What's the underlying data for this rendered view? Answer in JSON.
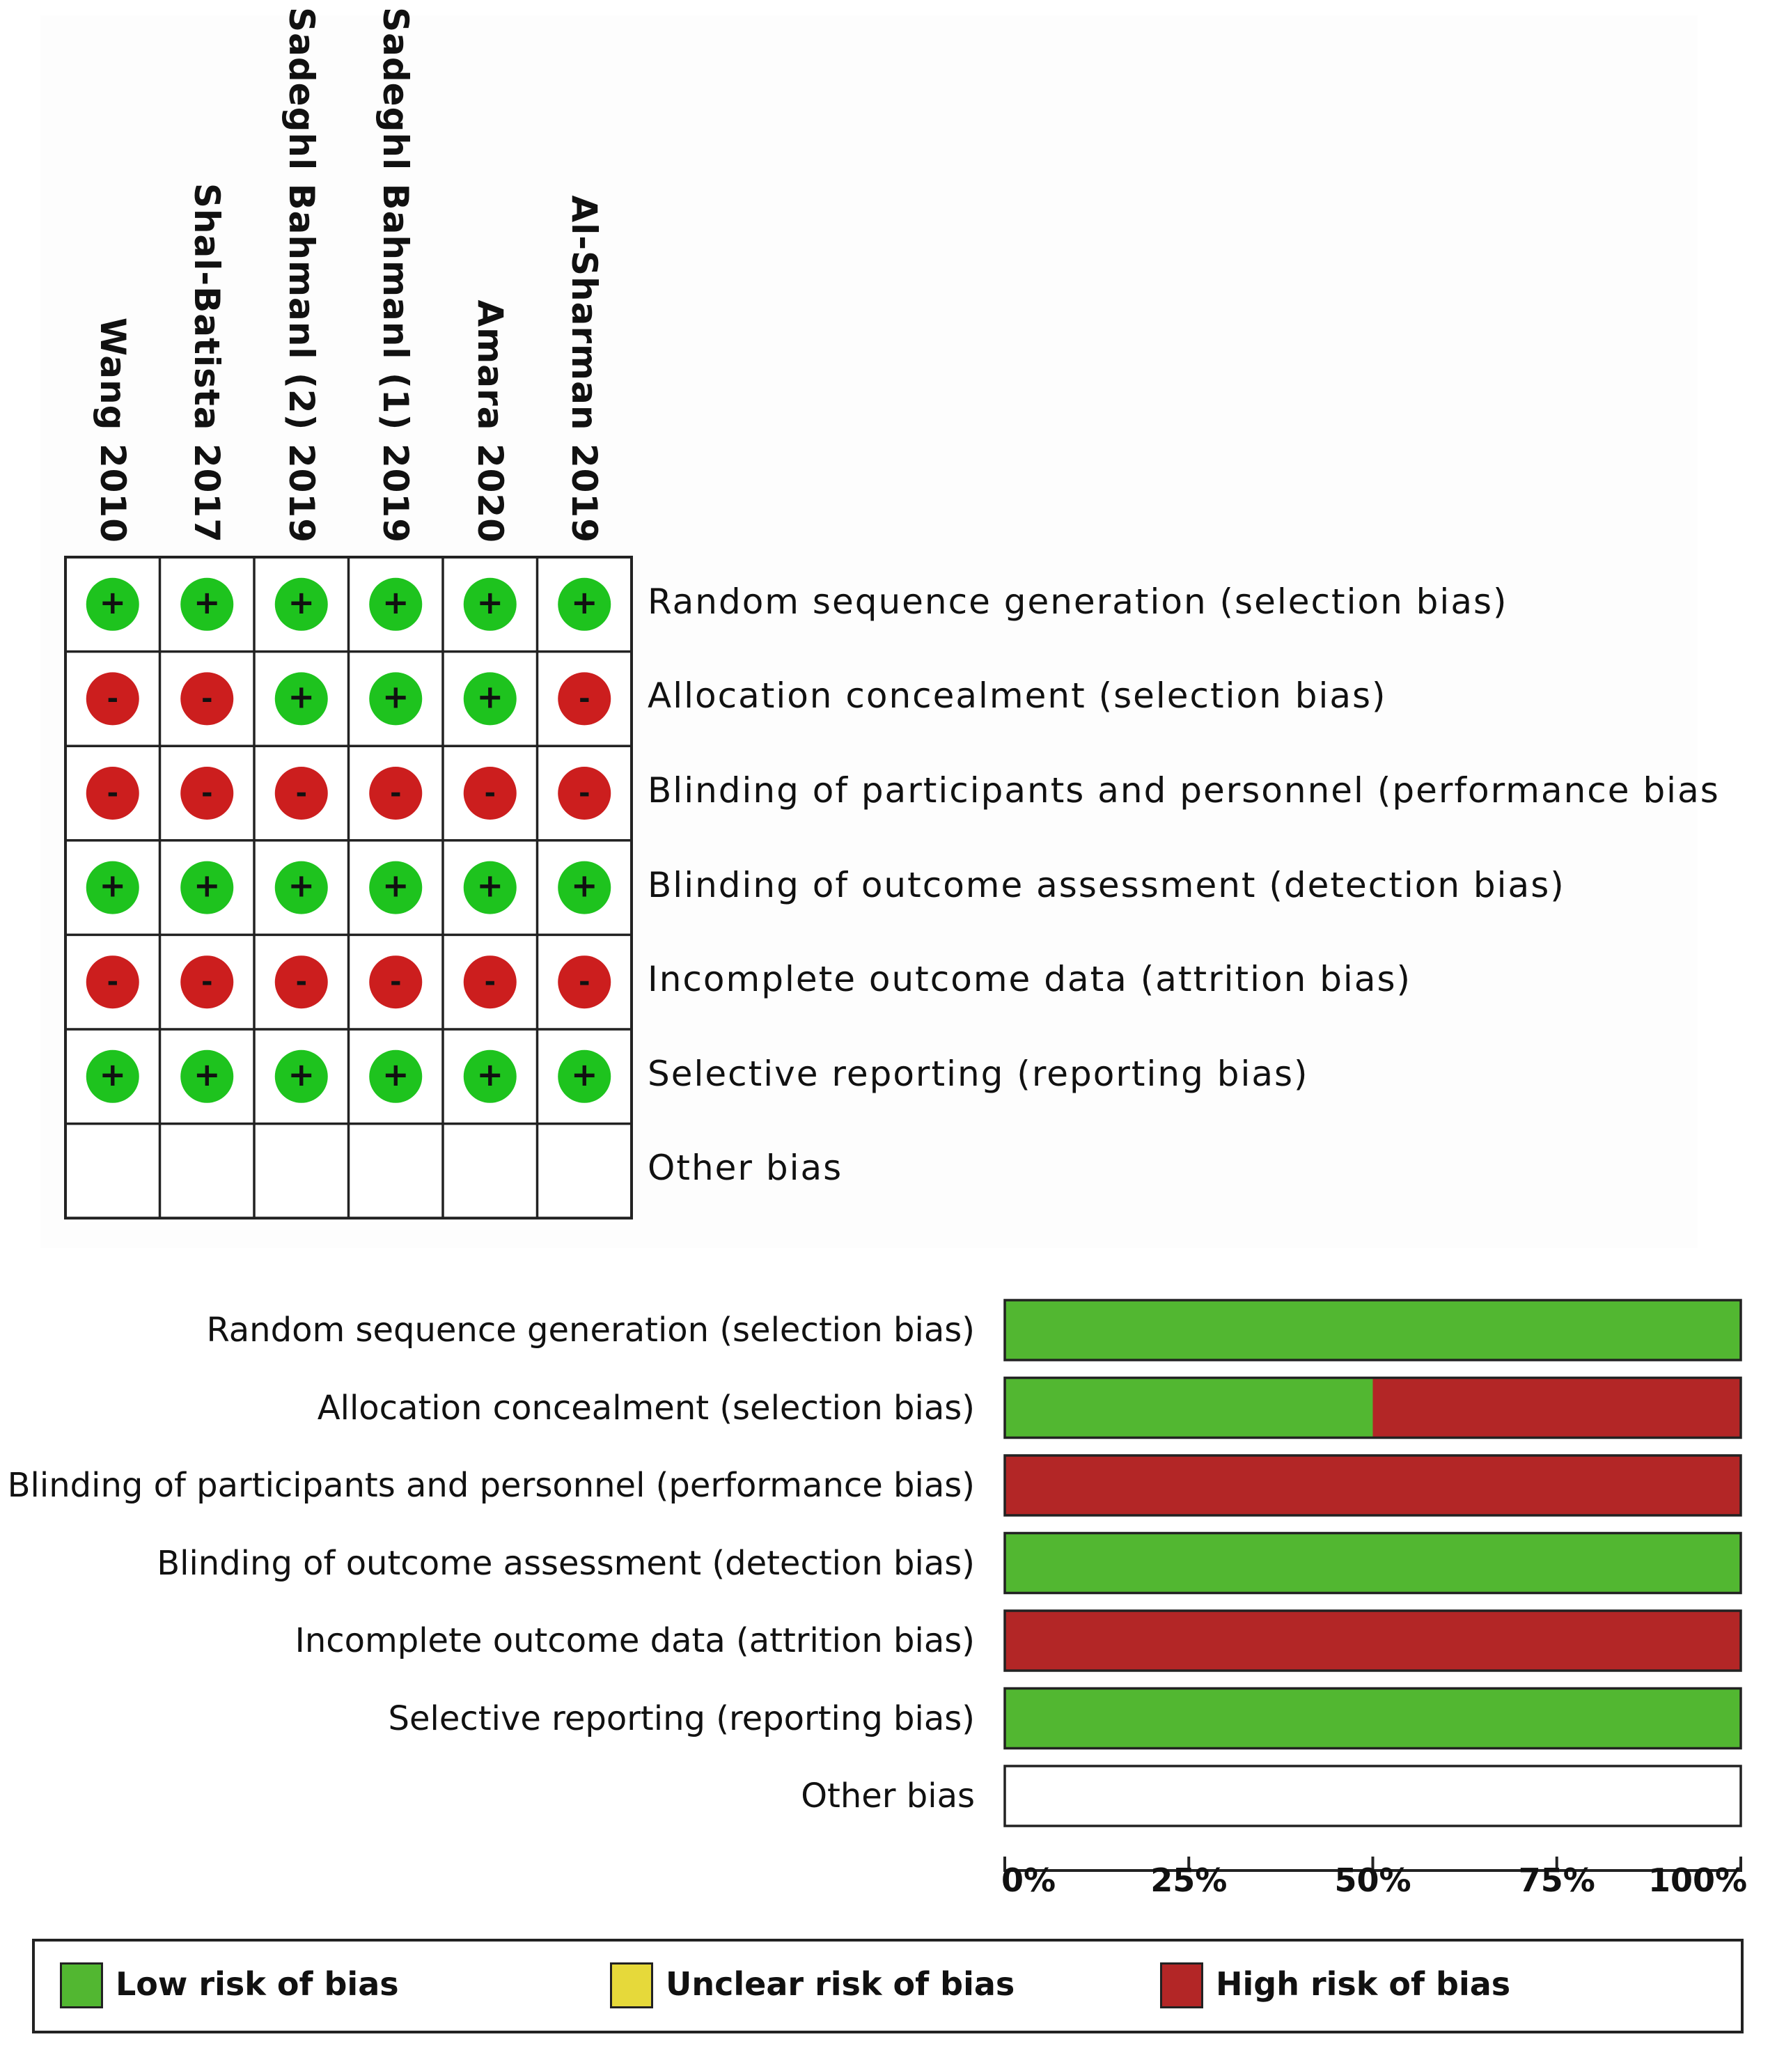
{
  "colors": {
    "low": "#52b731",
    "unclear": "#e6d93a",
    "high": "#b32626",
    "low_circle": "#1ec31e",
    "high_circle": "#cc1e1e"
  },
  "studies": [
    "Wang 2010",
    "Shal-Batista 2017",
    "Sadeghl Bahmanl (2) 2019",
    "Sadeghl Bahmanl (1) 2019",
    "Amara 2020",
    "Al-Sharman 2019"
  ],
  "domains": [
    "Random sequence generation (selection bias)",
    "Allocation concealment (selection bias)",
    "Blinding of participants and personnel (performance bias",
    "Blinding of outcome assessment (detection bias)",
    "Incomplete outcome data (attrition bias)",
    "Selective reporting (reporting bias)",
    "Other bias"
  ],
  "symbols": {
    "low": "+",
    "high": "-"
  },
  "chart_data": [
    {
      "type": "table",
      "rows": [
        "Random sequence generation (selection bias)",
        "Allocation concealment (selection bias)",
        "Blinding of participants and personnel (performance bias",
        "Blinding of outcome assessment (detection bias)",
        "Incomplete outcome data (attrition bias)",
        "Selective reporting (reporting bias)",
        "Other bias"
      ],
      "columns": [
        "Wang 2010",
        "Shal-Batista 2017",
        "Sadeghl Bahmanl (2) 2019",
        "Sadeghl Bahmanl (1) 2019",
        "Amara 2020",
        "Al-Sharman 2019"
      ],
      "values": [
        [
          "low",
          "low",
          "low",
          "low",
          "low",
          "low"
        ],
        [
          "high",
          "high",
          "low",
          "low",
          "low",
          "high"
        ],
        [
          "high",
          "high",
          "high",
          "high",
          "high",
          "high"
        ],
        [
          "low",
          "low",
          "low",
          "low",
          "low",
          "low"
        ],
        [
          "high",
          "high",
          "high",
          "high",
          "high",
          "high"
        ],
        [
          "low",
          "low",
          "low",
          "low",
          "low",
          "low"
        ],
        [
          "",
          "",
          "",
          "",
          "",
          ""
        ]
      ]
    },
    {
      "type": "bar",
      "orientation": "horizontal",
      "stacked": true,
      "categories": [
        "Random sequence generation (selection bias)",
        "Allocation concealment (selection bias)",
        "Blinding of participants and personnel (performance bias)",
        "Blinding of outcome assessment (detection bias)",
        "Incomplete outcome data (attrition bias)",
        "Selective reporting (reporting bias)",
        "Other bias"
      ],
      "series": [
        {
          "name": "Low risk of bias",
          "values": [
            100,
            50,
            0,
            100,
            0,
            100,
            0
          ]
        },
        {
          "name": "Unclear risk of bias",
          "values": [
            0,
            0,
            0,
            0,
            0,
            0,
            0
          ]
        },
        {
          "name": "High risk of bias",
          "values": [
            0,
            50,
            100,
            0,
            100,
            0,
            0
          ]
        }
      ],
      "xlim": [
        0,
        100
      ],
      "xticks": [
        "0%",
        "25%",
        "50%",
        "75%",
        "100%"
      ],
      "legend_position": "bottom"
    }
  ],
  "legend": {
    "low": "Low risk of bias",
    "unclear": "Unclear risk of bias",
    "high": "High risk of bias"
  }
}
